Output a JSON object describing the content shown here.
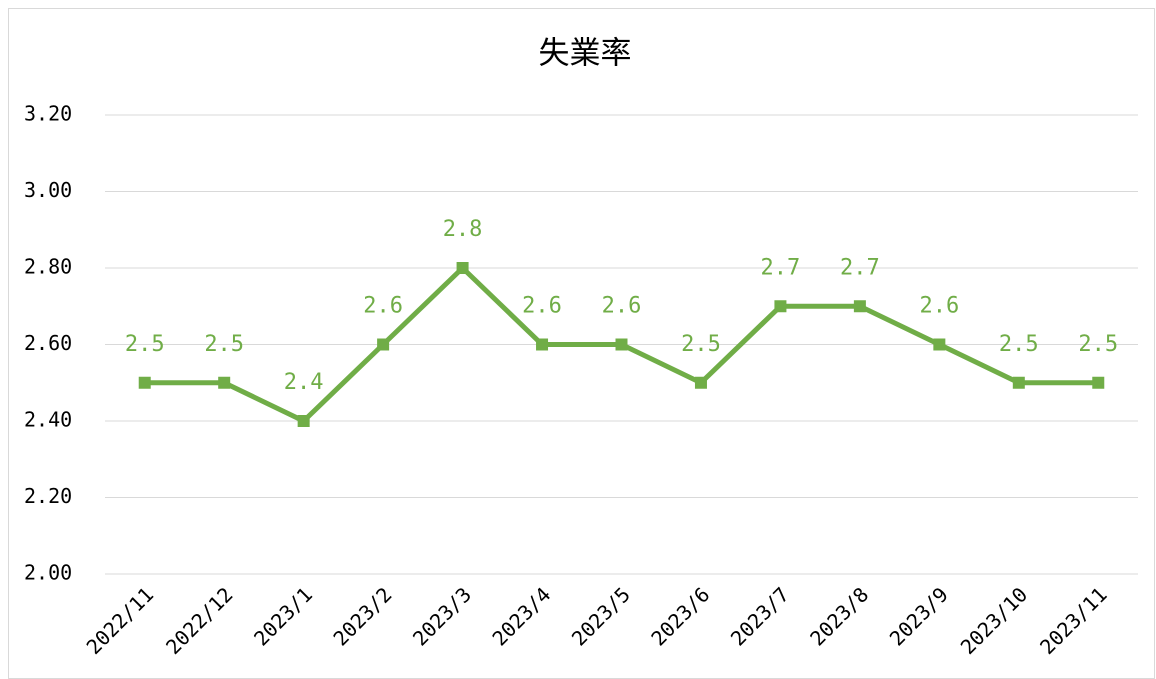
{
  "chart_data": {
    "type": "line",
    "title": "失業率",
    "categories": [
      "2022/11",
      "2022/12",
      "2023/1",
      "2023/2",
      "2023/3",
      "2023/4",
      "2023/5",
      "2023/6",
      "2023/7",
      "2023/8",
      "2023/9",
      "2023/10",
      "2023/11"
    ],
    "values": [
      2.5,
      2.5,
      2.4,
      2.6,
      2.8,
      2.6,
      2.6,
      2.5,
      2.7,
      2.7,
      2.6,
      2.5,
      2.5
    ],
    "color": "#70ad47",
    "ylim": [
      2,
      3.2
    ],
    "yticks": [
      {
        "value": 2,
        "label": "2.00"
      },
      {
        "value": 2.2,
        "label": "2.20"
      },
      {
        "value": 2.4,
        "label": "2.40"
      },
      {
        "value": 2.6,
        "label": "2.60"
      },
      {
        "value": 2.8,
        "label": "2.80"
      },
      {
        "value": 3,
        "label": "3.00"
      },
      {
        "value": 3.2,
        "label": "3.20"
      }
    ],
    "grid": true
  }
}
